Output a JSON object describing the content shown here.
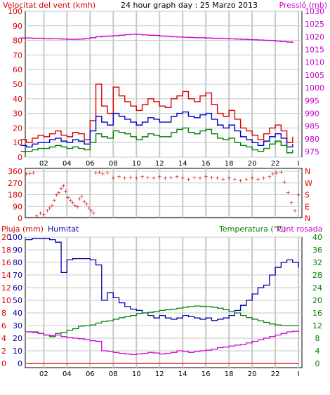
{
  "colors": {
    "wind_avg": "#0000cc",
    "wind_gust": "#dd0000",
    "wind_low": "#008000",
    "pressure": "#cc00cc",
    "direction": "#dd0000",
    "rain": "#dd0000",
    "humidity": "#0000aa",
    "temperature": "#008000",
    "dewpoint": "#cc00cc",
    "grid": "#c8c8c8",
    "frame": "#000000"
  },
  "chart_data": [
    {
      "type": "line",
      "title": "24 hour graph day : 25 Marzo 2013",
      "left_label": "Velocitat del vent (kmh)",
      "right_label": "Pressió (mb)",
      "x_ticks": [
        "02",
        "04",
        "06",
        "08",
        "10",
        "12",
        "14",
        "16",
        "18",
        "20",
        "22",
        "I"
      ],
      "y_left_ticks": [
        "0",
        "10",
        "20",
        "30",
        "40",
        "50",
        "60",
        "70",
        "80",
        "90",
        "100"
      ],
      "y_right_ticks": [
        "975",
        "980",
        "985",
        "990",
        "995",
        "1000",
        "1005",
        "1010",
        "1015",
        "1020",
        "1025",
        "1030"
      ],
      "ylim_left": [
        0,
        100
      ],
      "ylim_right": [
        975,
        1030
      ],
      "grid": true,
      "x_hours": [
        0,
        0.5,
        1,
        1.5,
        2,
        2.5,
        3,
        3.5,
        4,
        4.5,
        5,
        5.5,
        6,
        6.5,
        7,
        7.5,
        8,
        8.5,
        9,
        9.5,
        10,
        10.5,
        11,
        11.5,
        12,
        12.5,
        13,
        13.5,
        14,
        14.5,
        15,
        15.5,
        16,
        16.5,
        17,
        17.5,
        18,
        18.5,
        19,
        19.5,
        20,
        20.5,
        21,
        21.5,
        22,
        22.5,
        23,
        23.5
      ],
      "series": [
        {
          "key": "gust",
          "values": [
            12,
            10,
            13,
            15,
            14,
            16,
            18,
            15,
            14,
            17,
            16,
            12,
            25,
            50,
            35,
            30,
            48,
            42,
            38,
            35,
            32,
            36,
            40,
            38,
            35,
            34,
            40,
            42,
            45,
            40,
            38,
            42,
            44,
            36,
            30,
            28,
            32,
            26,
            20,
            18,
            15,
            12,
            16,
            20,
            22,
            18,
            10,
            14
          ]
        },
        {
          "key": "avg",
          "values": [
            8,
            7,
            9,
            10,
            10,
            12,
            13,
            11,
            10,
            12,
            11,
            9,
            18,
            28,
            24,
            22,
            30,
            28,
            26,
            24,
            22,
            24,
            27,
            26,
            24,
            24,
            28,
            30,
            31,
            28,
            27,
            29,
            30,
            26,
            22,
            20,
            22,
            18,
            14,
            12,
            10,
            8,
            11,
            14,
            16,
            13,
            7,
            9
          ]
        },
        {
          "key": "low",
          "values": [
            4,
            4,
            5,
            6,
            6,
            7,
            8,
            7,
            6,
            7,
            6,
            5,
            10,
            16,
            14,
            13,
            18,
            17,
            16,
            14,
            12,
            14,
            16,
            15,
            14,
            14,
            17,
            19,
            20,
            17,
            16,
            18,
            19,
            16,
            13,
            12,
            13,
            10,
            8,
            7,
            5,
            4,
            6,
            9,
            11,
            8,
            3,
            5
          ]
        },
        {
          "key": "pressure",
          "values": [
            1019.5,
            1019.5,
            1019.4,
            1019.4,
            1019.3,
            1019.2,
            1019.2,
            1019.1,
            1019.0,
            1019.0,
            1019.1,
            1019.3,
            1019.6,
            1020.0,
            1020.2,
            1020.3,
            1020.4,
            1020.6,
            1020.8,
            1021.0,
            1020.9,
            1020.7,
            1020.6,
            1020.5,
            1020.3,
            1020.2,
            1020.0,
            1019.9,
            1019.8,
            1019.7,
            1019.6,
            1019.6,
            1019.5,
            1019.4,
            1019.4,
            1019.3,
            1019.2,
            1019.1,
            1019.0,
            1018.9,
            1018.8,
            1018.7,
            1018.6,
            1018.5,
            1018.3,
            1018.1,
            1017.9,
            1017.5
          ]
        }
      ]
    },
    {
      "type": "scatter",
      "y_ticks": [
        "360",
        "270",
        "180",
        "90",
        "0"
      ],
      "y_right_ticks": [
        "N",
        "W",
        "S",
        "E",
        "N"
      ],
      "ylim": [
        0,
        360
      ],
      "x_hours": [
        0,
        0.3,
        0.6,
        0.9,
        1.2,
        1.5,
        1.8,
        2.0,
        2.2,
        2.4,
        2.6,
        2.8,
        3.0,
        3.2,
        3.4,
        3.6,
        3.8,
        4.0,
        4.2,
        4.4,
        4.6,
        4.8,
        5.0,
        5.2,
        5.4,
        5.6,
        5.8,
        6.0,
        6.3,
        6.6,
        7.0,
        7.5,
        8,
        8.5,
        9,
        9.5,
        10,
        10.5,
        11,
        11.5,
        12,
        12.5,
        13,
        13.5,
        14,
        14.5,
        15,
        15.5,
        16,
        16.5,
        17,
        17.5,
        18,
        18.5,
        19,
        19.5,
        20,
        20.5,
        21,
        21.3,
        21.6,
        22.0,
        22.3,
        22.6,
        22.9,
        23.2,
        23.5
      ],
      "values": [
        340,
        345,
        350,
        20,
        40,
        30,
        60,
        80,
        100,
        140,
        180,
        200,
        230,
        250,
        210,
        160,
        140,
        120,
        100,
        90,
        150,
        170,
        130,
        110,
        80,
        60,
        40,
        350,
        355,
        340,
        350,
        310,
        320,
        310,
        315,
        310,
        320,
        315,
        310,
        320,
        310,
        315,
        320,
        310,
        300,
        315,
        310,
        320,
        315,
        310,
        300,
        310,
        300,
        290,
        300,
        310,
        300,
        310,
        320,
        340,
        350,
        355,
        280,
        200,
        120,
        60,
        180
      ]
    },
    {
      "type": "line",
      "left_label": "Pluja (mm)",
      "left_label2": "Humitat",
      "right_label": "Temperatura (°C)",
      "right_label2": "Punt rosada",
      "x_ticks": [
        "02",
        "04",
        "06",
        "08",
        "10",
        "12",
        "14",
        "16",
        "18",
        "20",
        "22",
        "I"
      ],
      "y_rain_ticks": [
        "0",
        "2",
        "4",
        "6",
        "8",
        "10",
        "12",
        "14",
        "16",
        "18",
        "20"
      ],
      "y_hum_ticks": [
        "0",
        "10",
        "20",
        "30",
        "40",
        "50",
        "60",
        "70",
        "80",
        "90",
        "100"
      ],
      "y_temp_ticks": [
        "0",
        "4",
        "8",
        "12",
        "16",
        "20",
        "24",
        "28",
        "32",
        "36",
        "40"
      ],
      "ylim_rain": [
        0,
        20
      ],
      "ylim_humidity": [
        0,
        100
      ],
      "ylim_temp": [
        0,
        40
      ],
      "grid": true,
      "x_hours": [
        0,
        0.5,
        1,
        1.5,
        2,
        2.5,
        3,
        3.5,
        4,
        4.5,
        5,
        5.5,
        6,
        6.5,
        7,
        7.5,
        8,
        8.5,
        9,
        9.5,
        10,
        10.5,
        11,
        11.5,
        12,
        12.5,
        13,
        13.5,
        14,
        14.5,
        15,
        15.5,
        16,
        16.5,
        17,
        17.5,
        18,
        18.5,
        19,
        19.5,
        20,
        20.5,
        21,
        21.5,
        22,
        22.5,
        23,
        23.5
      ],
      "series": [
        {
          "key": "humidity",
          "values": [
            98,
            99,
            99,
            99,
            98,
            96,
            72,
            82,
            83,
            83,
            83,
            82,
            78,
            50,
            56,
            52,
            48,
            45,
            43,
            42,
            40,
            38,
            36,
            38,
            36,
            35,
            36,
            38,
            37,
            36,
            35,
            36,
            34,
            35,
            36,
            38,
            42,
            46,
            50,
            55,
            60,
            62,
            70,
            76,
            80,
            82,
            80,
            76
          ]
        },
        {
          "key": "temperature",
          "values": [
            10.0,
            10.0,
            9.5,
            9.0,
            8.5,
            9.5,
            9.8,
            10.5,
            11.0,
            11.8,
            12.0,
            12.2,
            12.8,
            13.3,
            13.5,
            14.0,
            14.5,
            14.8,
            15.2,
            15.8,
            16.0,
            16.2,
            16.5,
            16.8,
            17.0,
            17.2,
            17.5,
            17.8,
            18.0,
            18.2,
            18.1,
            18.0,
            17.8,
            17.5,
            17.0,
            16.5,
            16.0,
            15.2,
            14.5,
            14.0,
            13.5,
            13.0,
            12.5,
            12.2,
            12.0,
            12.0,
            12.0,
            12.0
          ]
        },
        {
          "key": "dewpoint",
          "values": [
            10.0,
            9.8,
            9.5,
            9.0,
            8.8,
            9.0,
            8.5,
            8.2,
            8.0,
            7.8,
            7.5,
            7.2,
            7.0,
            4.0,
            3.8,
            3.5,
            3.2,
            3.0,
            2.8,
            3.0,
            3.2,
            3.5,
            3.3,
            3.0,
            3.2,
            3.5,
            4.0,
            3.8,
            3.5,
            3.8,
            4.0,
            4.2,
            4.5,
            5.0,
            5.2,
            5.5,
            5.8,
            6.0,
            6.5,
            7.0,
            7.5,
            8.0,
            8.5,
            9.0,
            9.5,
            10.0,
            10.2,
            10.0
          ]
        },
        {
          "key": "rain",
          "values": [
            0,
            0,
            0,
            0,
            0,
            0,
            0,
            0,
            0,
            0,
            0,
            0,
            0,
            0,
            0,
            0,
            0,
            0,
            0,
            0,
            0,
            0,
            0,
            0,
            0,
            0,
            0,
            0,
            0,
            0,
            0,
            0,
            0,
            0,
            0,
            0,
            0,
            0,
            0,
            0,
            0,
            0,
            0,
            0,
            0,
            0,
            0,
            0
          ]
        }
      ]
    }
  ]
}
